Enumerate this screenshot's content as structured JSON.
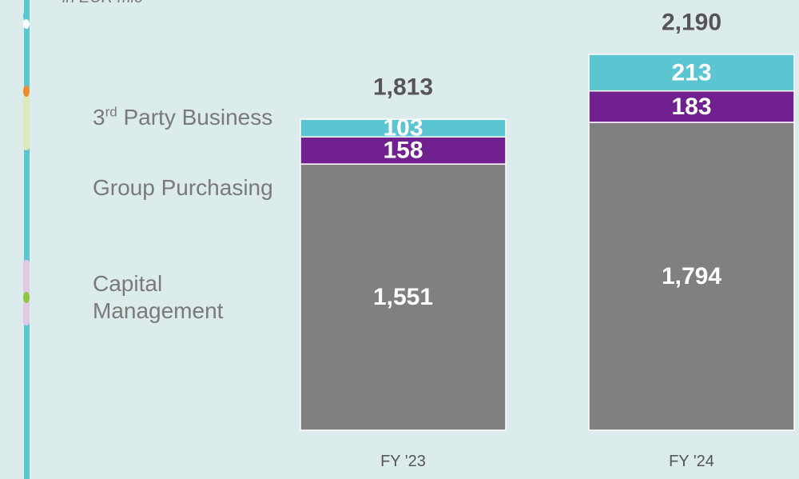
{
  "chart_data": {
    "type": "stacked_bar",
    "subtitle": "in EUR mio",
    "categories": [
      "FY '23",
      "FY '24"
    ],
    "series": [
      {
        "name": "Capital Management",
        "color": "#808080",
        "values": [
          1551,
          1794
        ],
        "value_labels": [
          "1,551",
          "1,794"
        ]
      },
      {
        "name": "Group Purchasing",
        "color": "#71208f",
        "values": [
          158,
          183
        ]
      },
      {
        "name": "3rd Party Business",
        "color": "#5bc5d2",
        "values": [
          103,
          213
        ]
      }
    ],
    "totals": [
      1813,
      2190
    ],
    "totals_labels": [
      "1,813",
      "2,190"
    ],
    "ylim": [
      0,
      2190
    ]
  }
}
